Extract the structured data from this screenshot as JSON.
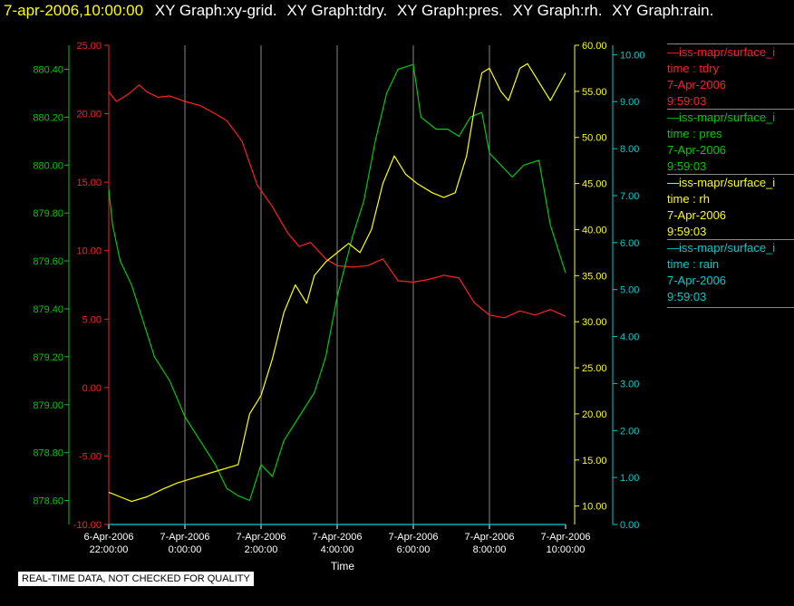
{
  "header": {
    "timestamp": "7-apr-2006,10:00:00",
    "timestamp_color": "#ffff00",
    "titles": [
      "XY Graph:xy-grid.",
      "XY Graph:tdry.",
      "XY Graph:pres.",
      "XY Graph:rh.",
      "XY Graph:rain."
    ]
  },
  "chart_data": {
    "type": "line",
    "xlabel": "Time",
    "x_ticks": [
      {
        "date": "6-Apr-2006",
        "time": "22:00:00"
      },
      {
        "date": "7-Apr-2006",
        "time": "0:00:00"
      },
      {
        "date": "7-Apr-2006",
        "time": "2:00:00"
      },
      {
        "date": "7-Apr-2006",
        "time": "4:00:00"
      },
      {
        "date": "7-Apr-2006",
        "time": "6:00:00"
      },
      {
        "date": "7-Apr-2006",
        "time": "8:00:00"
      },
      {
        "date": "7-Apr-2006",
        "time": "10:00:00"
      }
    ],
    "x_range_hours": [
      22,
      34
    ],
    "grid": "vertical",
    "axes": {
      "pres": {
        "color": "#00cc00",
        "range": [
          878.5,
          880.5
        ],
        "ticks": [
          "878.60",
          "878.80",
          "879.00",
          "879.20",
          "879.40",
          "879.60",
          "879.80",
          "880.00",
          "880.20",
          "880.40"
        ]
      },
      "tdry": {
        "color": "#ff2020",
        "range": [
          -10,
          25
        ],
        "ticks": [
          "-10.00",
          "-5.00",
          "0.00",
          "5.00",
          "10.00",
          "15.00",
          "20.00",
          "25.00"
        ]
      },
      "rh": {
        "color": "#ffff00",
        "range": [
          8,
          60
        ],
        "ticks": [
          "10.00",
          "15.00",
          "20.00",
          "25.00",
          "30.00",
          "35.00",
          "40.00",
          "45.00",
          "50.00",
          "55.00",
          "60.00"
        ]
      },
      "rain": {
        "color": "#00cccc",
        "range": [
          0,
          10.2
        ],
        "ticks": [
          "0.00",
          "1.00",
          "2.00",
          "3.00",
          "4.00",
          "5.00",
          "6.00",
          "7.00",
          "8.00",
          "9.00",
          "10.00"
        ]
      }
    },
    "series": [
      {
        "key": "tdry",
        "color": "#ff2020",
        "x": [
          22.0,
          22.2,
          22.5,
          22.8,
          23.0,
          23.3,
          23.6,
          24.0,
          24.4,
          24.8,
          25.1,
          25.5,
          25.9,
          26.3,
          26.7,
          27.0,
          27.3,
          27.7,
          28.0,
          28.4,
          28.8,
          29.2,
          29.6,
          30.0,
          30.4,
          30.8,
          31.2,
          31.6,
          32.0,
          32.4,
          32.8,
          33.2,
          33.6,
          34.0
        ],
        "y": [
          21.6,
          20.9,
          21.4,
          22.1,
          21.6,
          21.2,
          21.3,
          20.9,
          20.6,
          20.0,
          19.5,
          18.0,
          14.8,
          13.2,
          11.3,
          10.3,
          10.6,
          9.4,
          8.9,
          8.8,
          8.9,
          9.4,
          7.8,
          7.7,
          7.9,
          8.2,
          8.0,
          6.2,
          5.3,
          5.1,
          5.6,
          5.3,
          5.7,
          5.2
        ]
      },
      {
        "key": "pres",
        "color": "#00cc00",
        "x": [
          22.0,
          22.1,
          22.3,
          22.6,
          22.9,
          23.2,
          23.6,
          24.0,
          24.4,
          24.8,
          25.1,
          25.4,
          25.7,
          26.0,
          26.3,
          26.6,
          27.0,
          27.4,
          27.7,
          28.0,
          28.4,
          28.7,
          29.0,
          29.3,
          29.6,
          30.0,
          30.2,
          30.6,
          30.9,
          31.2,
          31.5,
          31.8,
          32.0,
          32.3,
          32.6,
          32.9,
          33.3,
          33.6,
          34.0
        ],
        "y": [
          879.9,
          879.75,
          879.6,
          879.5,
          879.35,
          879.2,
          879.1,
          878.95,
          878.85,
          878.75,
          878.65,
          878.62,
          878.6,
          878.75,
          878.7,
          878.85,
          878.95,
          879.05,
          879.2,
          879.45,
          879.7,
          879.85,
          880.1,
          880.3,
          880.4,
          880.42,
          880.2,
          880.15,
          880.15,
          880.12,
          880.2,
          880.22,
          880.05,
          880.0,
          879.95,
          880.0,
          880.02,
          879.75,
          879.55
        ]
      },
      {
        "key": "rh",
        "color": "#ffff00",
        "x": [
          22.0,
          22.3,
          22.6,
          23.0,
          23.4,
          23.8,
          24.2,
          24.6,
          25.0,
          25.4,
          25.7,
          26.0,
          26.3,
          26.6,
          26.9,
          27.2,
          27.4,
          27.7,
          28.0,
          28.3,
          28.6,
          28.9,
          29.2,
          29.5,
          29.8,
          30.1,
          30.5,
          30.8,
          31.1,
          31.4,
          31.6,
          31.8,
          32.0,
          32.3,
          32.5,
          32.8,
          33.0,
          33.3,
          33.6,
          34.0
        ],
        "y": [
          11.5,
          11.0,
          10.5,
          11.0,
          11.8,
          12.5,
          13.0,
          13.5,
          14.0,
          14.5,
          20.0,
          22.0,
          26.0,
          31.0,
          34.0,
          32.0,
          35.0,
          36.5,
          37.5,
          38.5,
          37.5,
          40.0,
          45.0,
          48.0,
          46.0,
          45.0,
          44.0,
          43.5,
          44.0,
          48.0,
          53.0,
          57.0,
          57.5,
          55.0,
          54.0,
          57.5,
          58.0,
          56.0,
          54.0,
          57.0
        ]
      },
      {
        "key": "rain",
        "color": "#00cccc",
        "x": [
          22.0,
          34.0
        ],
        "y": [
          0.0,
          0.0
        ]
      }
    ]
  },
  "legend": [
    {
      "name": "—iss-mapr/surface_i",
      "field": "time : tdry",
      "date": "7-Apr-2006",
      "time": "9:59:03",
      "color": "#ff2020"
    },
    {
      "name": "—iss-mapr/surface_i",
      "field": "time : pres",
      "date": "7-Apr-2006",
      "time": "9:59:03",
      "color": "#00cc00"
    },
    {
      "name": "—iss-mapr/surface_i",
      "field": "time : rh",
      "date": "7-Apr-2006",
      "time": "9:59:03",
      "color": "#ffff00"
    },
    {
      "name": "—iss-mapr/surface_i",
      "field": "time : rain",
      "date": "7-Apr-2006",
      "time": "9:59:03",
      "color": "#00cccc"
    }
  ],
  "footer": {
    "note": "REAL-TIME DATA, NOT CHECKED FOR QUALITY"
  }
}
